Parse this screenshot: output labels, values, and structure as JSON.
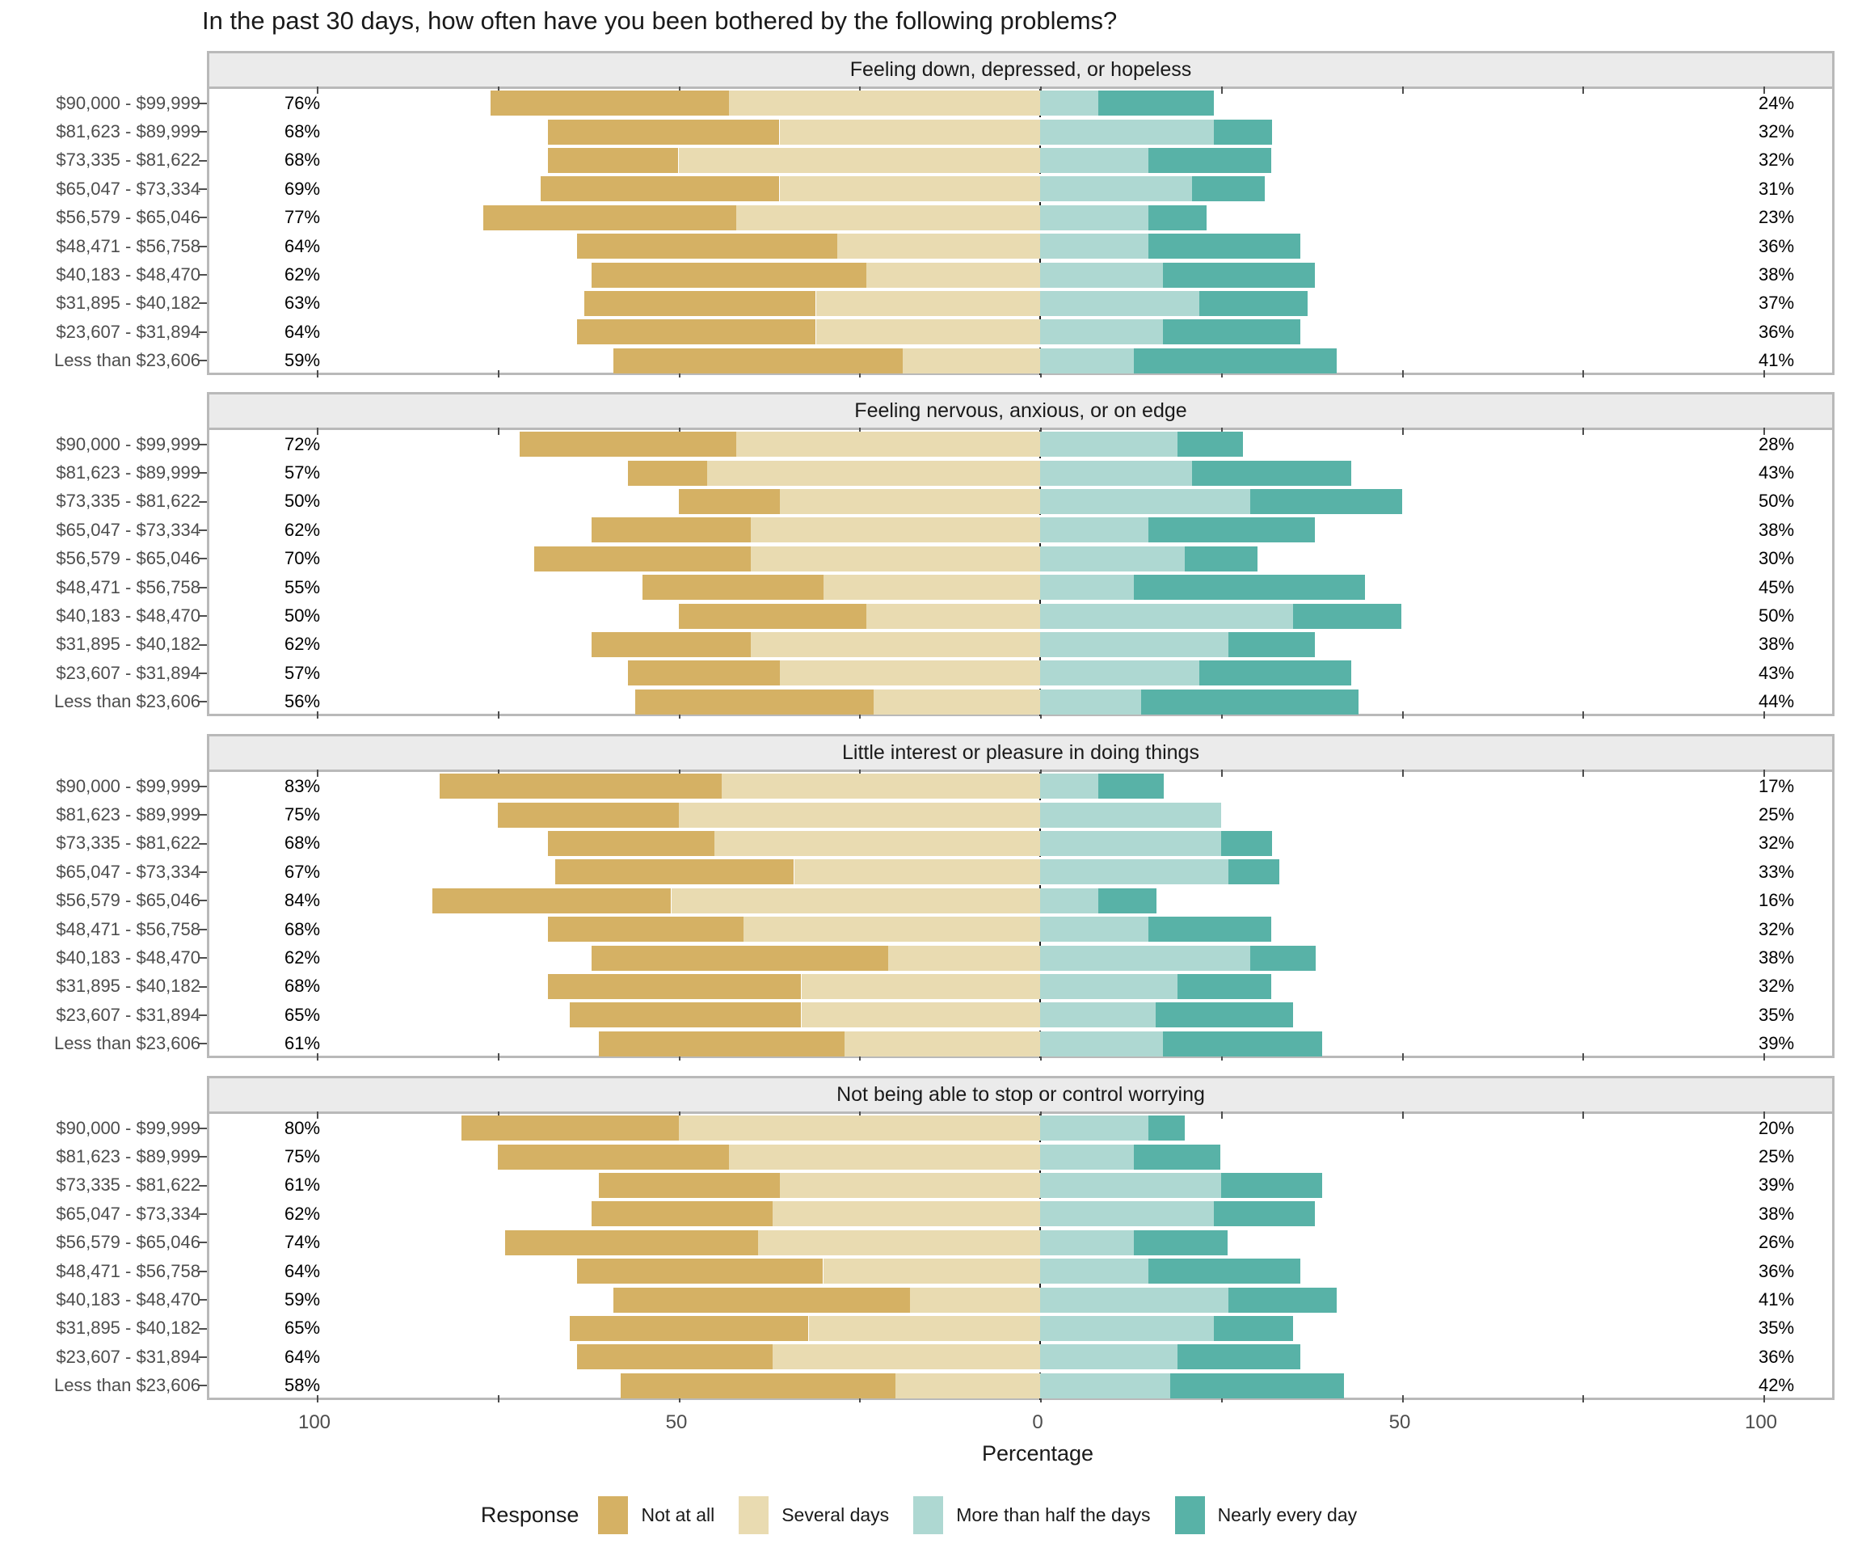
{
  "title": "In the past 30 days, how often have you been bothered by the following problems?",
  "axis": {
    "xlabel": "Percentage",
    "tick_labels": [
      "100",
      "50",
      "0",
      "50",
      "100"
    ],
    "tick_values": [
      -100,
      -50,
      0,
      50,
      100
    ],
    "minor_tick_step": 25
  },
  "legend": {
    "title": "Response",
    "items": [
      {
        "label": "Not at all",
        "color": "#d5b164"
      },
      {
        "label": "Several days",
        "color": "#e9dbb1"
      },
      {
        "label": "More than half the days",
        "color": "#aed8d2"
      },
      {
        "label": "Nearly every day",
        "color": "#58b2a7"
      }
    ]
  },
  "colors": {
    "not_at_all": "#d5b164",
    "several_days": "#e9dbb1",
    "more_than_half": "#aed8d2",
    "nearly_every_day": "#58b2a7",
    "strip_bg": "#ebebeb",
    "panel_border": "#b9b9b9"
  },
  "chart_data": {
    "type": "bar",
    "subtype": "diverging-stacked-likert",
    "unit": "percent",
    "title": "In the past 30 days, how often have you been bothered by the following problems?",
    "xlabel": "Percentage",
    "xlim": [
      -115,
      115
    ],
    "grid": false,
    "legend_position": "bottom",
    "series_names": [
      "Not at all",
      "Several days",
      "More than half the days",
      "Nearly every day"
    ],
    "categories": [
      "$90,000 - $99,999",
      "$81,623 - $89,999",
      "$73,335 - $81,622",
      "$65,047 - $73,334",
      "$56,579 - $65,046",
      "$48,471 - $56,758",
      "$40,183 - $48,470",
      "$31,895 - $40,182",
      "$23,607 - $31,894",
      "Less than $23,606"
    ],
    "panels": [
      {
        "title": "Feeling down, depressed, or hopeless",
        "rows": [
          {
            "category": "$90,000 - $99,999",
            "left_label": "76%",
            "right_label": "24%",
            "values": {
              "not_at_all": 33,
              "several_days": 43,
              "more_than_half": 8,
              "nearly_every_day": 16
            }
          },
          {
            "category": "$81,623 - $89,999",
            "left_label": "68%",
            "right_label": "32%",
            "values": {
              "not_at_all": 32,
              "several_days": 36,
              "more_than_half": 24,
              "nearly_every_day": 8
            }
          },
          {
            "category": "$73,335 - $81,622",
            "left_label": "68%",
            "right_label": "32%",
            "values": {
              "not_at_all": 18,
              "several_days": 50,
              "more_than_half": 15,
              "nearly_every_day": 17
            }
          },
          {
            "category": "$65,047 - $73,334",
            "left_label": "69%",
            "right_label": "31%",
            "values": {
              "not_at_all": 33,
              "several_days": 36,
              "more_than_half": 21,
              "nearly_every_day": 10
            }
          },
          {
            "category": "$56,579 - $65,046",
            "left_label": "77%",
            "right_label": "23%",
            "values": {
              "not_at_all": 35,
              "several_days": 42,
              "more_than_half": 15,
              "nearly_every_day": 8
            }
          },
          {
            "category": "$48,471 - $56,758",
            "left_label": "64%",
            "right_label": "36%",
            "values": {
              "not_at_all": 36,
              "several_days": 28,
              "more_than_half": 15,
              "nearly_every_day": 21
            }
          },
          {
            "category": "$40,183 - $48,470",
            "left_label": "62%",
            "right_label": "38%",
            "values": {
              "not_at_all": 38,
              "several_days": 24,
              "more_than_half": 17,
              "nearly_every_day": 21
            }
          },
          {
            "category": "$31,895 - $40,182",
            "left_label": "63%",
            "right_label": "37%",
            "values": {
              "not_at_all": 32,
              "several_days": 31,
              "more_than_half": 22,
              "nearly_every_day": 15
            }
          },
          {
            "category": "$23,607 - $31,894",
            "left_label": "64%",
            "right_label": "36%",
            "values": {
              "not_at_all": 33,
              "several_days": 31,
              "more_than_half": 17,
              "nearly_every_day": 19
            }
          },
          {
            "category": "Less than $23,606",
            "left_label": "59%",
            "right_label": "41%",
            "values": {
              "not_at_all": 40,
              "several_days": 19,
              "more_than_half": 13,
              "nearly_every_day": 28
            }
          }
        ]
      },
      {
        "title": "Feeling nervous, anxious, or on edge",
        "rows": [
          {
            "category": "$90,000 - $99,999",
            "left_label": "72%",
            "right_label": "28%",
            "values": {
              "not_at_all": 30,
              "several_days": 42,
              "more_than_half": 19,
              "nearly_every_day": 9
            }
          },
          {
            "category": "$81,623 - $89,999",
            "left_label": "57%",
            "right_label": "43%",
            "values": {
              "not_at_all": 11,
              "several_days": 46,
              "more_than_half": 21,
              "nearly_every_day": 22
            }
          },
          {
            "category": "$73,335 - $81,622",
            "left_label": "50%",
            "right_label": "50%",
            "values": {
              "not_at_all": 14,
              "several_days": 36,
              "more_than_half": 29,
              "nearly_every_day": 21
            }
          },
          {
            "category": "$65,047 - $73,334",
            "left_label": "62%",
            "right_label": "38%",
            "values": {
              "not_at_all": 22,
              "several_days": 40,
              "more_than_half": 15,
              "nearly_every_day": 23
            }
          },
          {
            "category": "$56,579 - $65,046",
            "left_label": "70%",
            "right_label": "30%",
            "values": {
              "not_at_all": 30,
              "several_days": 40,
              "more_than_half": 20,
              "nearly_every_day": 10
            }
          },
          {
            "category": "$48,471 - $56,758",
            "left_label": "55%",
            "right_label": "45%",
            "values": {
              "not_at_all": 25,
              "several_days": 30,
              "more_than_half": 13,
              "nearly_every_day": 32
            }
          },
          {
            "category": "$40,183 - $48,470",
            "left_label": "50%",
            "right_label": "50%",
            "values": {
              "not_at_all": 26,
              "several_days": 24,
              "more_than_half": 35,
              "nearly_every_day": 15
            }
          },
          {
            "category": "$31,895 - $40,182",
            "left_label": "62%",
            "right_label": "38%",
            "values": {
              "not_at_all": 22,
              "several_days": 40,
              "more_than_half": 26,
              "nearly_every_day": 12
            }
          },
          {
            "category": "$23,607 - $31,894",
            "left_label": "57%",
            "right_label": "43%",
            "values": {
              "not_at_all": 21,
              "several_days": 36,
              "more_than_half": 22,
              "nearly_every_day": 21
            }
          },
          {
            "category": "Less than $23,606",
            "left_label": "56%",
            "right_label": "44%",
            "values": {
              "not_at_all": 33,
              "several_days": 23,
              "more_than_half": 14,
              "nearly_every_day": 30
            }
          }
        ]
      },
      {
        "title": "Little interest or pleasure in doing things",
        "rows": [
          {
            "category": "$90,000 - $99,999",
            "left_label": "83%",
            "right_label": "17%",
            "values": {
              "not_at_all": 39,
              "several_days": 44,
              "more_than_half": 8,
              "nearly_every_day": 9
            }
          },
          {
            "category": "$81,623 - $89,999",
            "left_label": "75%",
            "right_label": "25%",
            "values": {
              "not_at_all": 25,
              "several_days": 50,
              "more_than_half": 25,
              "nearly_every_day": 0
            }
          },
          {
            "category": "$73,335 - $81,622",
            "left_label": "68%",
            "right_label": "32%",
            "values": {
              "not_at_all": 23,
              "several_days": 45,
              "more_than_half": 25,
              "nearly_every_day": 7
            }
          },
          {
            "category": "$65,047 - $73,334",
            "left_label": "67%",
            "right_label": "33%",
            "values": {
              "not_at_all": 33,
              "several_days": 34,
              "more_than_half": 26,
              "nearly_every_day": 7
            }
          },
          {
            "category": "$56,579 - $65,046",
            "left_label": "84%",
            "right_label": "16%",
            "values": {
              "not_at_all": 33,
              "several_days": 51,
              "more_than_half": 8,
              "nearly_every_day": 8
            }
          },
          {
            "category": "$48,471 - $56,758",
            "left_label": "68%",
            "right_label": "32%",
            "values": {
              "not_at_all": 27,
              "several_days": 41,
              "more_than_half": 15,
              "nearly_every_day": 17
            }
          },
          {
            "category": "$40,183 - $48,470",
            "left_label": "62%",
            "right_label": "38%",
            "values": {
              "not_at_all": 41,
              "several_days": 21,
              "more_than_half": 29,
              "nearly_every_day": 9
            }
          },
          {
            "category": "$31,895 - $40,182",
            "left_label": "68%",
            "right_label": "32%",
            "values": {
              "not_at_all": 35,
              "several_days": 33,
              "more_than_half": 19,
              "nearly_every_day": 13
            }
          },
          {
            "category": "$23,607 - $31,894",
            "left_label": "65%",
            "right_label": "35%",
            "values": {
              "not_at_all": 32,
              "several_days": 33,
              "more_than_half": 16,
              "nearly_every_day": 19
            }
          },
          {
            "category": "Less than $23,606",
            "left_label": "61%",
            "right_label": "39%",
            "values": {
              "not_at_all": 34,
              "several_days": 27,
              "more_than_half": 17,
              "nearly_every_day": 22
            }
          }
        ]
      },
      {
        "title": "Not being able to stop or control worrying",
        "rows": [
          {
            "category": "$90,000 - $99,999",
            "left_label": "80%",
            "right_label": "20%",
            "values": {
              "not_at_all": 30,
              "several_days": 50,
              "more_than_half": 15,
              "nearly_every_day": 5
            }
          },
          {
            "category": "$81,623 - $89,999",
            "left_label": "75%",
            "right_label": "25%",
            "values": {
              "not_at_all": 32,
              "several_days": 43,
              "more_than_half": 13,
              "nearly_every_day": 12
            }
          },
          {
            "category": "$73,335 - $81,622",
            "left_label": "61%",
            "right_label": "39%",
            "values": {
              "not_at_all": 25,
              "several_days": 36,
              "more_than_half": 25,
              "nearly_every_day": 14
            }
          },
          {
            "category": "$65,047 - $73,334",
            "left_label": "62%",
            "right_label": "38%",
            "values": {
              "not_at_all": 25,
              "several_days": 37,
              "more_than_half": 24,
              "nearly_every_day": 14
            }
          },
          {
            "category": "$56,579 - $65,046",
            "left_label": "74%",
            "right_label": "26%",
            "values": {
              "not_at_all": 35,
              "several_days": 39,
              "more_than_half": 13,
              "nearly_every_day": 13
            }
          },
          {
            "category": "$48,471 - $56,758",
            "left_label": "64%",
            "right_label": "36%",
            "values": {
              "not_at_all": 34,
              "several_days": 30,
              "more_than_half": 15,
              "nearly_every_day": 21
            }
          },
          {
            "category": "$40,183 - $48,470",
            "left_label": "59%",
            "right_label": "41%",
            "values": {
              "not_at_all": 41,
              "several_days": 18,
              "more_than_half": 26,
              "nearly_every_day": 15
            }
          },
          {
            "category": "$31,895 - $40,182",
            "left_label": "65%",
            "right_label": "35%",
            "values": {
              "not_at_all": 33,
              "several_days": 32,
              "more_than_half": 24,
              "nearly_every_day": 11
            }
          },
          {
            "category": "$23,607 - $31,894",
            "left_label": "64%",
            "right_label": "36%",
            "values": {
              "not_at_all": 27,
              "several_days": 37,
              "more_than_half": 19,
              "nearly_every_day": 17
            }
          },
          {
            "category": "Less than $23,606",
            "left_label": "58%",
            "right_label": "42%",
            "values": {
              "not_at_all": 38,
              "several_days": 20,
              "more_than_half": 18,
              "nearly_every_day": 24
            }
          }
        ]
      }
    ]
  }
}
